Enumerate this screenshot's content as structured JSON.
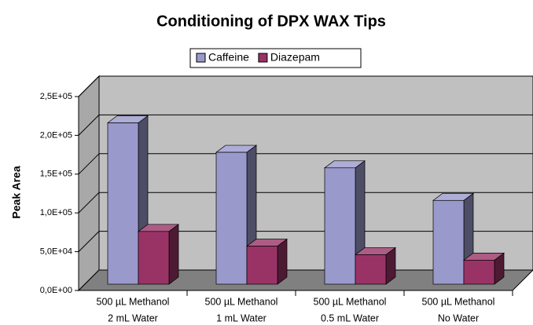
{
  "chart_data": {
    "type": "bar3d",
    "title": "Conditioning of DPX WAX Tips",
    "y_label": "Peak Area",
    "categories": [
      [
        "500 µL Methanol",
        "2 mL Water"
      ],
      [
        "500 µL Methanol",
        "1 mL Water"
      ],
      [
        "500 µL Methanol",
        "0.5 mL Water"
      ],
      [
        "500 µL Methanol",
        "No Water"
      ]
    ],
    "series": [
      {
        "name": "Caffeine",
        "color": "#9999cc",
        "values": [
          208000,
          170000,
          150000,
          108000
        ]
      },
      {
        "name": "Diazepam",
        "color": "#993366",
        "values": [
          68000,
          49000,
          38000,
          31000
        ]
      }
    ],
    "ylim": [
      0,
      250000
    ],
    "yticks": [
      {
        "value": 0,
        "label": "0,0E+00"
      },
      {
        "value": 50000,
        "label": "5,0E+04"
      },
      {
        "value": 100000,
        "label": "1,0E+05"
      },
      {
        "value": 150000,
        "label": "1,5E+05"
      },
      {
        "value": 200000,
        "label": "2,0E+05"
      },
      {
        "value": 250000,
        "label": "2,5E+05"
      }
    ],
    "grid": true
  }
}
